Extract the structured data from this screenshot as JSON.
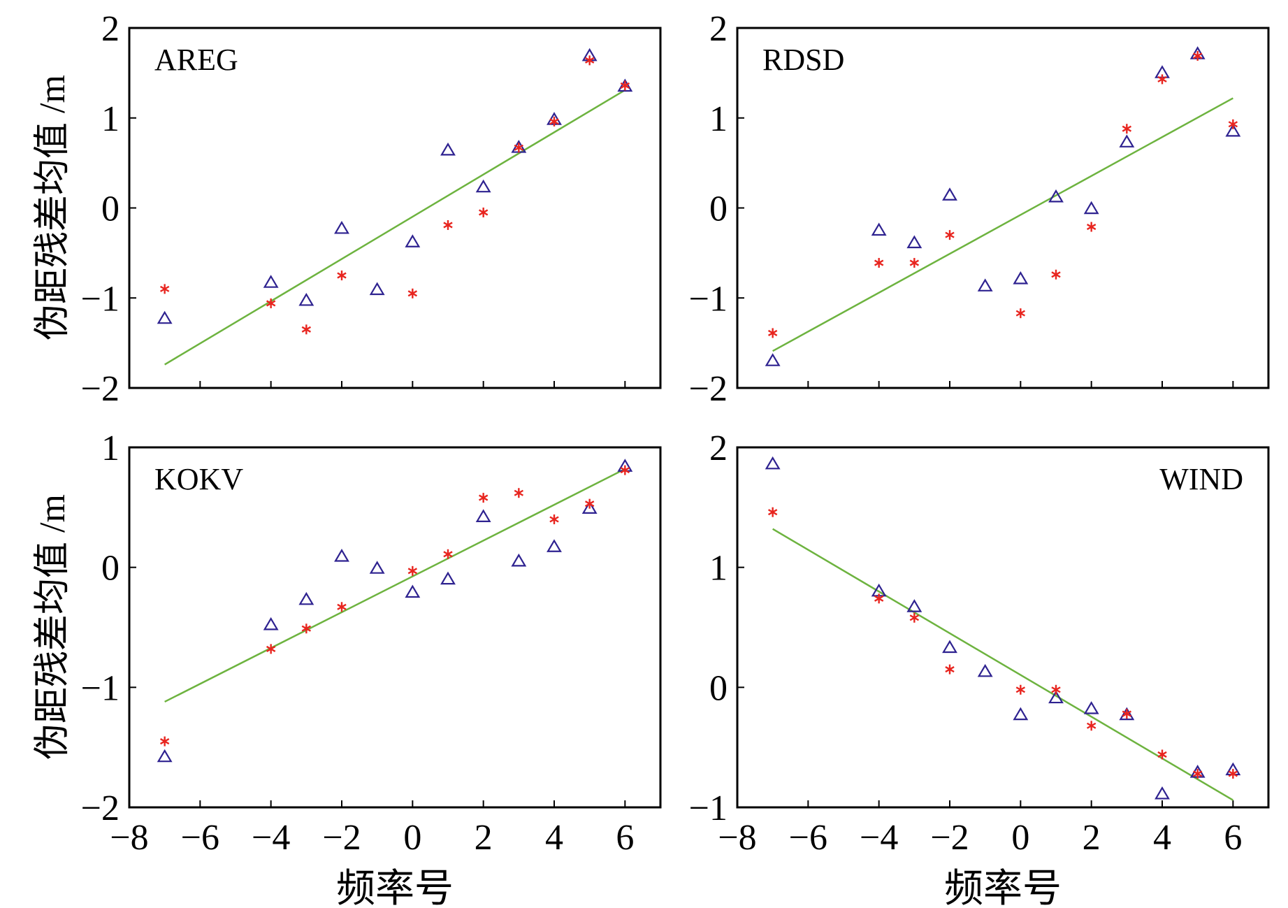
{
  "figure": {
    "xlabel": "频率号",
    "ylabel": "伪距残差均值 /m",
    "colors": {
      "triangle": "#2e2290",
      "star": "#e8251f",
      "fit": "#6db33f",
      "axis": "#000000"
    }
  },
  "chart_data": [
    {
      "type": "scatter",
      "station": "AREG",
      "label_position": "top-left",
      "xlim": [
        -8,
        7
      ],
      "ylim": [
        -2,
        2
      ],
      "xticks": [
        -8,
        -6,
        -4,
        -2,
        0,
        2,
        4,
        6
      ],
      "yticks": [
        2,
        1,
        0,
        -1,
        -2
      ],
      "show_xtick_labels": false,
      "series": [
        {
          "name": "triangle",
          "marker": "triangle",
          "x": [
            -7,
            -4,
            -3,
            -2,
            -1,
            0,
            1,
            2,
            3,
            4,
            5,
            6
          ],
          "y": [
            -1.23,
            -0.83,
            -1.03,
            -0.23,
            -0.91,
            -0.38,
            0.64,
            0.23,
            0.67,
            0.98,
            1.69,
            1.35
          ]
        },
        {
          "name": "star",
          "marker": "star",
          "x": [
            -7,
            -4,
            -3,
            -2,
            0,
            1,
            2,
            3,
            4,
            5,
            6
          ],
          "y": [
            -0.9,
            -1.06,
            -1.35,
            -0.75,
            -0.95,
            -0.19,
            -0.05,
            0.67,
            0.96,
            1.64,
            1.36
          ]
        }
      ],
      "fit": {
        "x": [
          -7,
          6
        ],
        "y": [
          -1.74,
          1.31
        ]
      }
    },
    {
      "type": "scatter",
      "station": "RDSD",
      "label_position": "top-left",
      "xlim": [
        -8,
        7
      ],
      "ylim": [
        -2,
        2
      ],
      "xticks": [
        -8,
        -6,
        -4,
        -2,
        0,
        2,
        4,
        6
      ],
      "yticks": [
        2,
        1,
        0,
        -1,
        -2
      ],
      "show_xtick_labels": false,
      "series": [
        {
          "name": "triangle",
          "marker": "triangle",
          "x": [
            -7,
            -4,
            -3,
            -2,
            -1,
            0,
            1,
            2,
            3,
            4,
            5,
            6
          ],
          "y": [
            -1.7,
            -0.25,
            -0.39,
            0.14,
            -0.87,
            -0.79,
            0.12,
            -0.01,
            0.73,
            1.5,
            1.71,
            0.85
          ]
        },
        {
          "name": "star",
          "marker": "star",
          "x": [
            -7,
            -4,
            -3,
            -2,
            0,
            1,
            2,
            4,
            5,
            3,
            6
          ],
          "y": [
            -1.39,
            -0.61,
            -0.61,
            -0.3,
            -1.17,
            -0.74,
            -0.21,
            1.43,
            1.69,
            0.88,
            0.93
          ]
        }
      ],
      "fit": {
        "x": [
          -7,
          6
        ],
        "y": [
          -1.59,
          1.22
        ]
      }
    },
    {
      "type": "scatter",
      "station": "KOKV",
      "label_position": "top-left",
      "xlim": [
        -8,
        7
      ],
      "ylim": [
        -2,
        1
      ],
      "xticks": [
        -8,
        -6,
        -4,
        -2,
        0,
        2,
        4,
        6
      ],
      "yticks": [
        1,
        0,
        -1,
        -2
      ],
      "show_xtick_labels": true,
      "series": [
        {
          "name": "triangle",
          "marker": "triangle",
          "x": [
            -7,
            -4,
            -3,
            -2,
            -1,
            0,
            1,
            2,
            3,
            4,
            5,
            6
          ],
          "y": [
            -1.58,
            -0.48,
            -0.27,
            0.09,
            -0.01,
            -0.21,
            -0.1,
            0.42,
            0.05,
            0.17,
            0.49,
            0.84
          ]
        },
        {
          "name": "star",
          "marker": "star",
          "x": [
            -7,
            -4,
            -3,
            -2,
            0,
            1,
            2,
            3,
            4,
            5,
            6
          ],
          "y": [
            -1.45,
            -0.68,
            -0.51,
            -0.33,
            -0.03,
            0.11,
            0.58,
            0.62,
            0.4,
            0.53,
            0.81
          ]
        }
      ],
      "fit": {
        "x": [
          -7,
          6
        ],
        "y": [
          -1.12,
          0.82
        ]
      }
    },
    {
      "type": "scatter",
      "station": "WIND",
      "label_position": "top-right",
      "xlim": [
        -8,
        7
      ],
      "ylim": [
        -1,
        2
      ],
      "xticks": [
        -8,
        -6,
        -4,
        -2,
        0,
        2,
        4,
        6
      ],
      "yticks": [
        2,
        1,
        0,
        -1
      ],
      "show_xtick_labels": true,
      "series": [
        {
          "name": "triangle",
          "marker": "triangle",
          "x": [
            -7,
            -4,
            -3,
            -2,
            -1,
            0,
            1,
            2,
            3,
            4,
            5,
            6
          ],
          "y": [
            1.86,
            0.8,
            0.67,
            0.33,
            0.13,
            -0.23,
            -0.09,
            -0.18,
            -0.23,
            -0.89,
            -0.71,
            -0.69
          ]
        },
        {
          "name": "star",
          "marker": "star",
          "x": [
            -7,
            -4,
            -3,
            -2,
            0,
            1,
            2,
            3,
            4,
            5,
            6
          ],
          "y": [
            1.46,
            0.74,
            0.58,
            0.15,
            -0.02,
            -0.02,
            -0.32,
            -0.22,
            -0.56,
            -0.72,
            -0.72
          ]
        }
      ],
      "fit": {
        "x": [
          -7,
          6
        ],
        "y": [
          1.32,
          -0.94
        ]
      }
    }
  ]
}
